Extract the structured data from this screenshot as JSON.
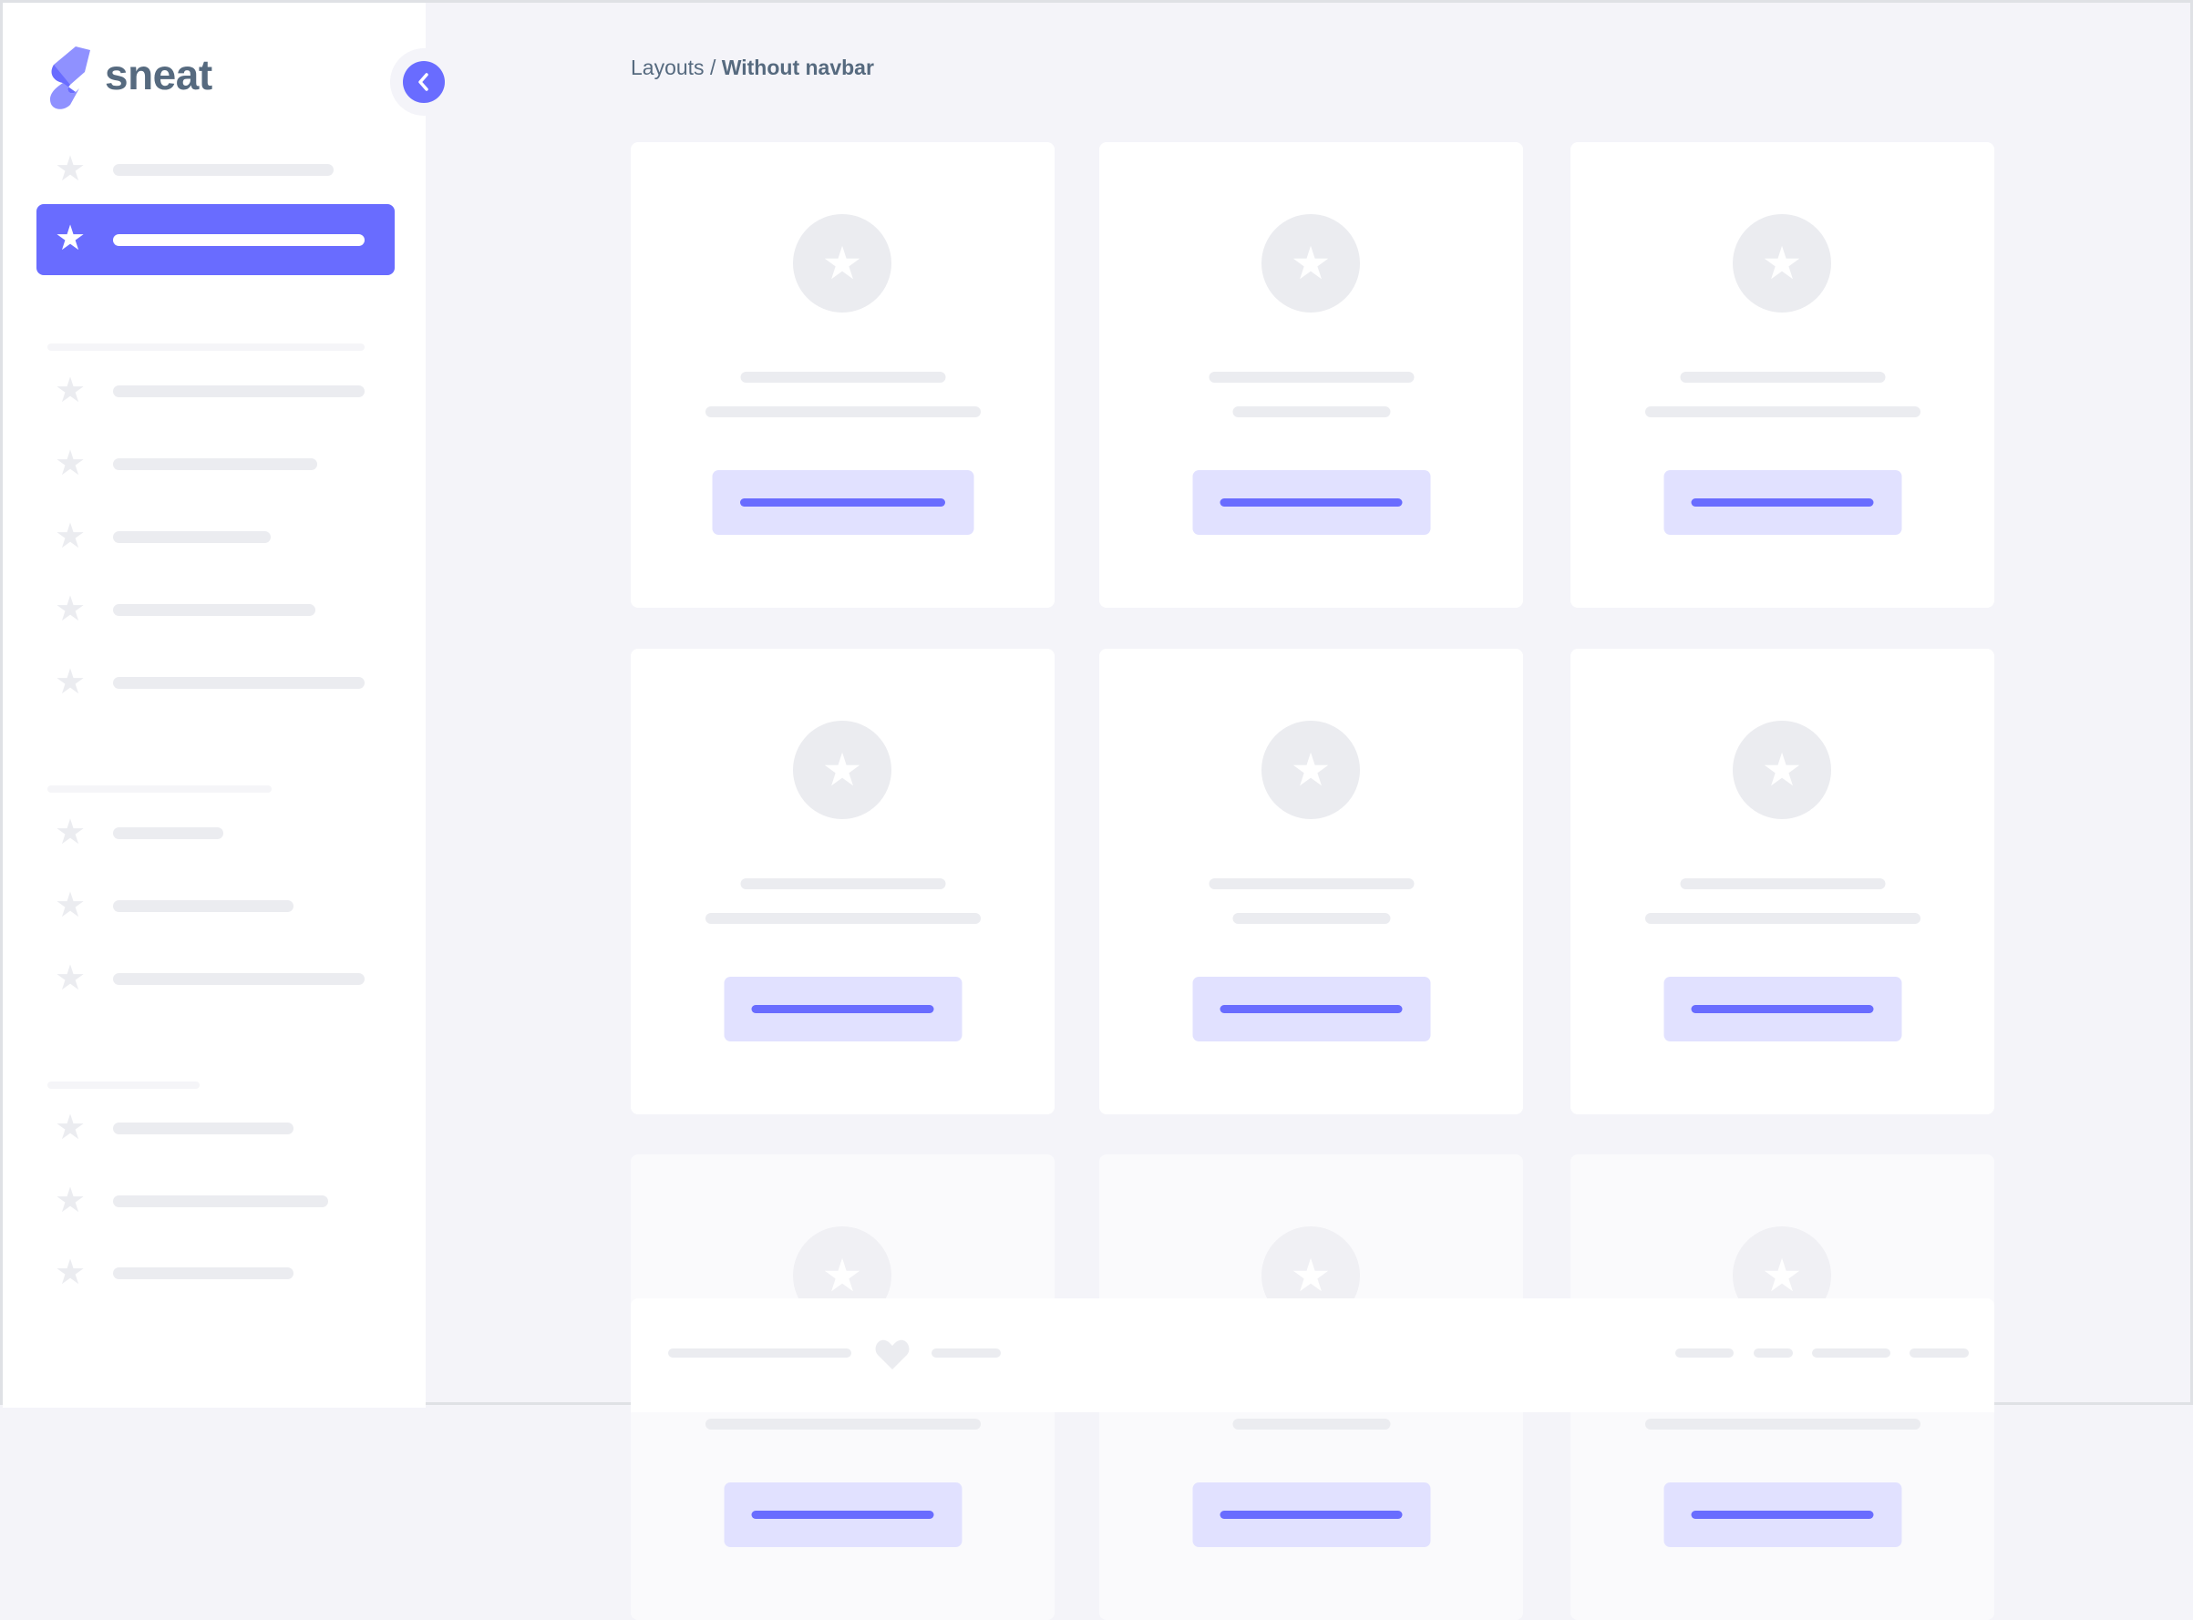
{
  "brand": {
    "name": "sneat",
    "accent": "#696cff",
    "text_color": "#566a7f"
  },
  "sidebar": {
    "toggle_icon": "chevron-left-icon",
    "items": [
      {
        "icon": "star-icon",
        "active": false
      },
      {
        "icon": "star-icon",
        "active": true
      },
      {
        "section": true
      },
      {
        "icon": "star-icon"
      },
      {
        "icon": "star-icon"
      },
      {
        "icon": "star-icon"
      },
      {
        "icon": "star-icon"
      },
      {
        "icon": "star-icon"
      },
      {
        "section": true
      },
      {
        "icon": "star-icon"
      },
      {
        "icon": "star-icon"
      },
      {
        "icon": "star-icon"
      },
      {
        "section": true
      },
      {
        "icon": "star-icon"
      },
      {
        "icon": "star-icon"
      },
      {
        "icon": "star-icon"
      }
    ]
  },
  "breadcrumb": {
    "parent": "Layouts",
    "separator": "/",
    "current": "Without navbar"
  },
  "cards": {
    "count": 9,
    "icon": "star-icon",
    "faded_row": 3
  },
  "footer": {
    "icon": "heart-icon"
  }
}
